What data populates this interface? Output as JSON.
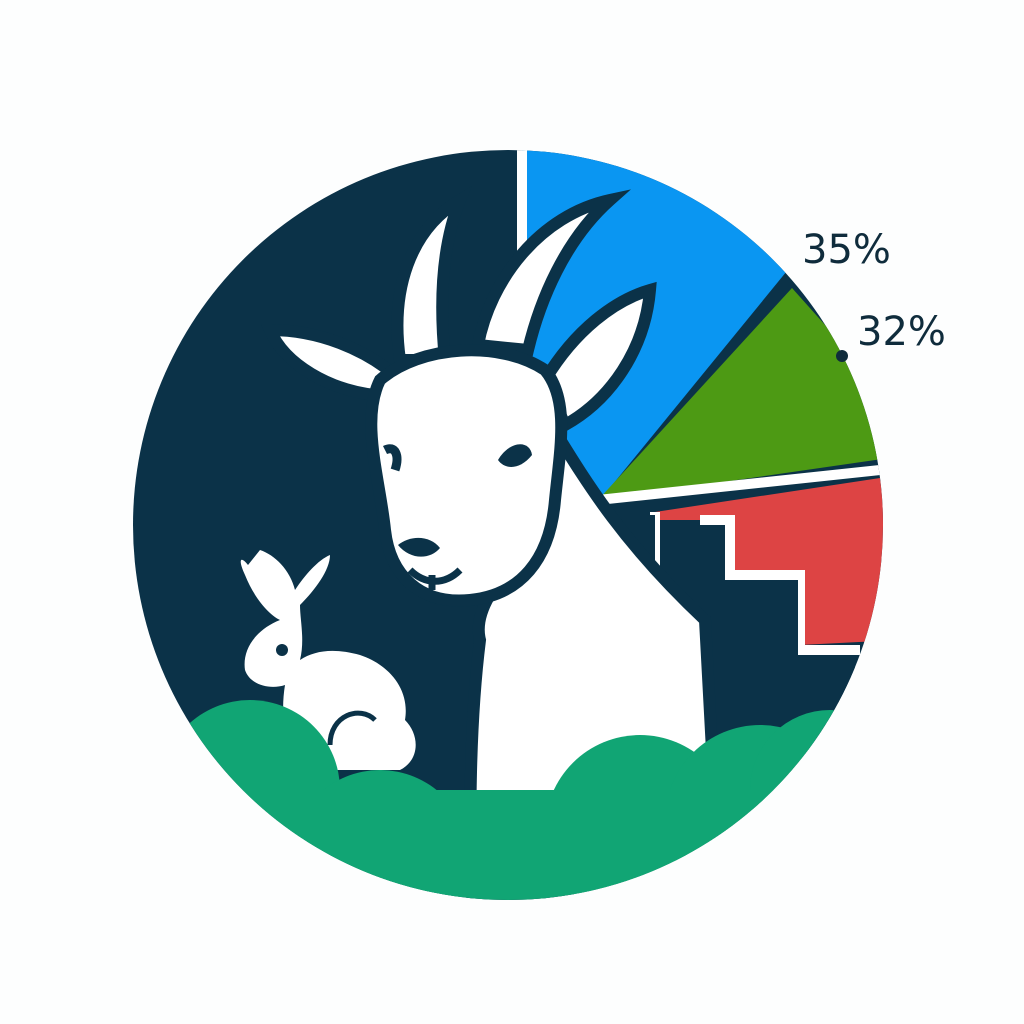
{
  "illustration": {
    "subject": "goat-and-rabbit-pie-emblem",
    "labels": {
      "top": "35%",
      "middle": "32%"
    },
    "colors": {
      "background": "#fdfefe",
      "navy": "#0b3248",
      "blue": "#0a96f2",
      "green_slice": "#4d9a14",
      "red_slice": "#dd4444",
      "hills": "#11a574",
      "white": "#ffffff",
      "outline": "#0b3248"
    }
  }
}
